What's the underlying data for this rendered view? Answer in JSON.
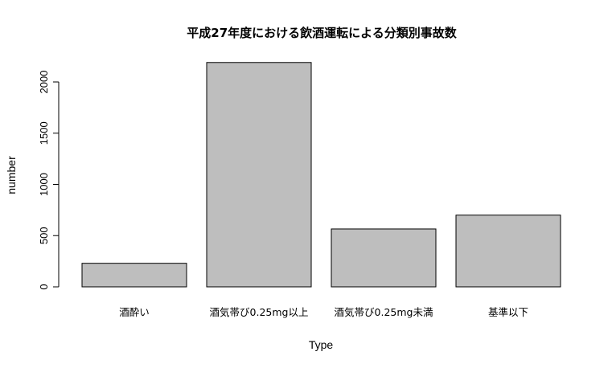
{
  "chart_data": {
    "type": "bar",
    "title": "平成27年度における飲酒運転による分類別事故数",
    "xlabel": "Type",
    "ylabel": "number",
    "categories": [
      "酒酔い",
      "酒気帯び0.25mg以上",
      "酒気帯び0.25mg未満",
      "基準以下"
    ],
    "values": [
      230,
      2190,
      565,
      700
    ],
    "ylim": [
      0,
      2000
    ],
    "yticks": [
      0,
      500,
      1000,
      1500,
      2000
    ],
    "bar_color": "#bebebe",
    "grid": false,
    "legend": "none"
  }
}
